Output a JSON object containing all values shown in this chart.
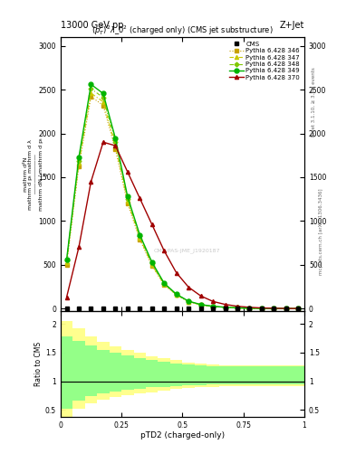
{
  "title_top_left": "13000 GeV pp",
  "title_top_right": "Z+Jet",
  "plot_title": "$(p_T^P)^2\\lambda\\_0^2$ (charged only) (CMS jet substructure)",
  "watermark": "mcplots.cern.ch [arXiv:1306.3436]",
  "rivet_text": "Rivet 3.1.10, ≥ 3.3M events",
  "cms_watermark": "CMS-PAS-JME_J1920187",
  "xlabel": "pTD2 (charged-only)",
  "ylabel_parts": [
    "mathrm d^{2}N",
    "mathrm d p_T mathrm d lambda",
    "mathrm dN / mathrm d p_T",
    "1"
  ],
  "ratio_ylabel": "Ratio to CMS",
  "xbins": [
    0.0,
    0.05,
    0.1,
    0.15,
    0.2,
    0.25,
    0.3,
    0.35,
    0.4,
    0.45,
    0.5,
    0.55,
    0.6,
    0.65,
    0.7,
    0.75,
    0.8,
    0.85,
    0.9,
    0.95,
    1.0
  ],
  "series_346": [
    500,
    1620,
    2420,
    2320,
    1820,
    1200,
    790,
    490,
    270,
    155,
    78,
    43,
    24,
    14,
    7.5,
    3.8,
    1.8,
    1.1,
    0.7,
    0.35
  ],
  "series_347": [
    530,
    1660,
    2460,
    2360,
    1860,
    1230,
    808,
    500,
    277,
    160,
    80,
    44,
    25,
    15,
    7.8,
    3.9,
    1.9,
    1.2,
    0.75,
    0.37
  ],
  "series_348": [
    545,
    1690,
    2510,
    2410,
    1905,
    1255,
    825,
    515,
    283,
    162,
    82,
    45,
    25.5,
    15.5,
    8.0,
    4.0,
    2.0,
    1.25,
    0.78,
    0.38
  ],
  "series_349": [
    560,
    1725,
    2560,
    2455,
    1945,
    1278,
    842,
    530,
    290,
    165,
    85,
    47,
    26,
    16,
    8.5,
    4.2,
    2.1,
    1.3,
    0.82,
    0.4
  ],
  "series_370": [
    130,
    700,
    1450,
    1900,
    1860,
    1560,
    1260,
    960,
    660,
    410,
    245,
    145,
    82,
    48,
    27,
    15,
    7.5,
    3.8,
    1.9,
    0.9
  ],
  "color_346": "#c8a000",
  "color_347": "#c8c800",
  "color_348": "#80c800",
  "color_349": "#00b400",
  "color_370": "#a00000",
  "yellow_low": [
    0.28,
    0.52,
    0.62,
    0.68,
    0.72,
    0.75,
    0.78,
    0.81,
    0.83,
    0.86,
    0.88,
    0.89,
    0.9,
    0.91,
    0.91,
    0.91,
    0.91,
    0.91,
    0.91,
    0.91
  ],
  "yellow_high": [
    2.05,
    1.92,
    1.78,
    1.68,
    1.61,
    1.55,
    1.49,
    1.44,
    1.4,
    1.37,
    1.33,
    1.31,
    1.29,
    1.28,
    1.28,
    1.28,
    1.28,
    1.28,
    1.28,
    1.28
  ],
  "green_low": [
    0.52,
    0.66,
    0.74,
    0.79,
    0.82,
    0.85,
    0.87,
    0.89,
    0.9,
    0.92,
    0.93,
    0.93,
    0.94,
    0.94,
    0.94,
    0.94,
    0.94,
    0.94,
    0.94,
    0.94
  ],
  "green_high": [
    1.78,
    1.7,
    1.62,
    1.55,
    1.5,
    1.45,
    1.4,
    1.37,
    1.34,
    1.31,
    1.29,
    1.27,
    1.26,
    1.26,
    1.26,
    1.26,
    1.26,
    1.26,
    1.26,
    1.26
  ],
  "ylim_main": [
    -30,
    3100
  ],
  "yticks_main": [
    0,
    500,
    1000,
    1500,
    2000,
    2500,
    3000
  ],
  "ytick_labels_main": [
    "0",
    "500",
    "1000",
    "1500",
    "2000",
    "2500",
    "3000"
  ],
  "ylim_ratio": [
    0.38,
    2.22
  ],
  "yticks_ratio": [
    0.5,
    1.0,
    1.5,
    2.0
  ],
  "ytick_labels_ratio": [
    "0.5",
    "1",
    "1.5",
    "2"
  ],
  "xticks": [
    0.0,
    0.25,
    0.5,
    0.75,
    1.0
  ],
  "xtick_labels": [
    "0",
    "0.25",
    "0.5",
    "0.75",
    "1"
  ],
  "background": "#ffffff"
}
